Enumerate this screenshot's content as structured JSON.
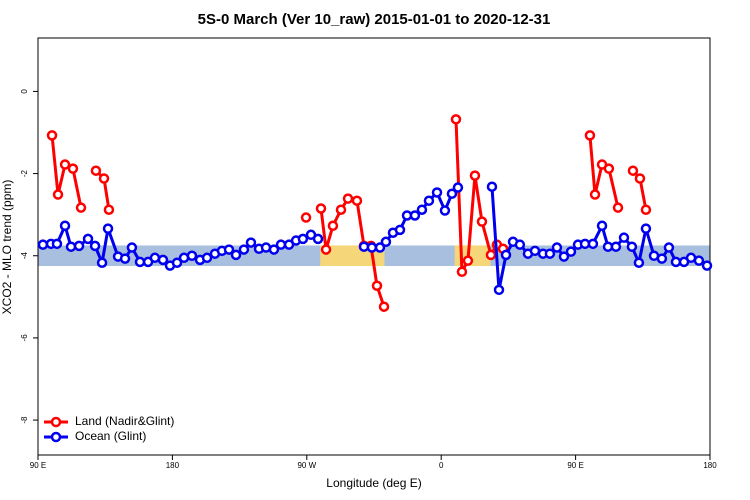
{
  "chart_data": {
    "type": "line",
    "title": "5S-0 March (Ver 10_raw)   2015-01-01 to 2020-12-31",
    "xlabel": "Longitude (deg E)",
    "ylabel": "XCO2 - MLO trend (ppm)",
    "xlim": [
      90,
      540
    ],
    "xticks": [
      {
        "value": 90,
        "label": "90 E"
      },
      180,
      {
        "value": 270,
        "label": "90 W"
      },
      {
        "value": 360,
        "label": "0"
      },
      {
        "value": 450,
        "label": "90 E"
      },
      {
        "value": 540,
        "label": "180"
      }
    ],
    "ylim": [
      -8.85,
      1.3
    ],
    "yticks": [
      0,
      -2,
      -4,
      -6,
      -8
    ],
    "grid": false,
    "legend": "bottom-left",
    "bands": [
      {
        "color": "#a8bfdf",
        "xlim": [
          90,
          540
        ],
        "ylim": [
          -4.25,
          -3.75
        ]
      },
      {
        "color": "#f5d77a",
        "xlim": [
          279,
          322
        ],
        "ylim": [
          -4.25,
          -3.75
        ]
      },
      {
        "color": "#f5d77a",
        "xlim": [
          369,
          393
        ],
        "ylim": [
          -4.25,
          -3.75
        ]
      }
    ],
    "series": [
      {
        "name": "Land (Nadir&Glint)",
        "color": "#ff0000",
        "x": [
          99.4,
          103.4,
          108.1,
          113.4,
          118.8,
          null,
          128.8,
          134.2,
          137.5,
          null,
          269.5,
          null,
          279.5,
          282.9,
          287.5,
          292.9,
          297.6,
          303.6,
          308.3,
          313.0,
          317.0,
          321.7,
          null,
          369.9,
          373.9,
          377.9,
          382.6,
          387.3,
          393.3,
          397.3,
          401.4,
          null,
          459.6,
          463.0,
          467.7,
          472.3,
          478.4,
          null,
          488.4,
          493.1,
          497.1
        ],
        "values": [
          -1.07,
          -2.51,
          -1.78,
          -1.88,
          -2.83,
          null,
          -1.93,
          -2.12,
          -2.88,
          null,
          -3.07,
          null,
          -2.85,
          -3.85,
          -3.27,
          -2.88,
          -2.61,
          -2.66,
          -3.76,
          -3.76,
          -4.73,
          -5.24,
          null,
          -0.68,
          -4.39,
          -4.12,
          -2.05,
          -3.17,
          -3.98,
          -3.73,
          -3.83,
          null,
          -1.07,
          -2.51,
          -1.78,
          -1.88,
          -2.83,
          null,
          -1.93,
          -2.12,
          -2.88
        ]
      },
      {
        "name": "Ocean (Glint)",
        "color": "#0000ee",
        "x": [
          93.3,
          98.7,
          102.7,
          108.1,
          112.1,
          117.5,
          123.5,
          128.2,
          132.9,
          136.9,
          143.6,
          148.3,
          152.9,
          158.3,
          163.7,
          168.3,
          173.7,
          178.4,
          183.1,
          187.8,
          193.1,
          198.5,
          203.2,
          208.5,
          213.2,
          217.9,
          222.6,
          227.9,
          232.6,
          238.0,
          242.7,
          248.0,
          252.7,
          258.1,
          262.8,
          267.4,
          272.8,
          277.5,
          null,
          308.3,
          313.6,
          319.0,
          323.0,
          327.7,
          332.4,
          337.1,
          342.4,
          347.1,
          351.8,
          357.2,
          362.5,
          367.2,
          371.2,
          null,
          394.0,
          398.7,
          403.4,
          408.1,
          412.7,
          418.1,
          422.8,
          428.2,
          432.8,
          437.5,
          442.2,
          446.9,
          451.6,
          456.3,
          461.6,
          467.7,
          471.7,
          477.0,
          482.4,
          487.7,
          492.4,
          497.1,
          502.5,
          507.8,
          512.5,
          517.2,
          522.6,
          527.3,
          532.6,
          538.0
        ],
        "values": [
          -3.73,
          -3.71,
          -3.71,
          -3.27,
          -3.78,
          -3.76,
          -3.59,
          -3.76,
          -4.17,
          -3.34,
          -4.02,
          -4.07,
          -3.8,
          -4.15,
          -4.15,
          -4.05,
          -4.1,
          -4.24,
          -4.17,
          -4.05,
          -4.0,
          -4.1,
          -4.05,
          -3.95,
          -3.88,
          -3.85,
          -3.98,
          -3.85,
          -3.68,
          -3.83,
          -3.8,
          -3.85,
          -3.73,
          -3.73,
          -3.63,
          -3.59,
          -3.49,
          -3.59,
          null,
          -3.78,
          -3.8,
          -3.8,
          -3.66,
          -3.44,
          -3.37,
          -3.02,
          -3.02,
          -2.88,
          -2.66,
          -2.46,
          -2.9,
          -2.49,
          -2.34,
          null,
          -2.32,
          -4.83,
          -3.98,
          -3.66,
          -3.73,
          -3.95,
          -3.88,
          -3.95,
          -3.95,
          -3.8,
          -4.02,
          -3.9,
          -3.73,
          -3.71,
          -3.71,
          -3.27,
          -3.78,
          -3.78,
          -3.56,
          -3.78,
          -4.17,
          -3.34,
          -4.0,
          -4.07,
          -3.8,
          -4.15,
          -4.15,
          -4.05,
          -4.12,
          -4.24
        ]
      }
    ]
  }
}
